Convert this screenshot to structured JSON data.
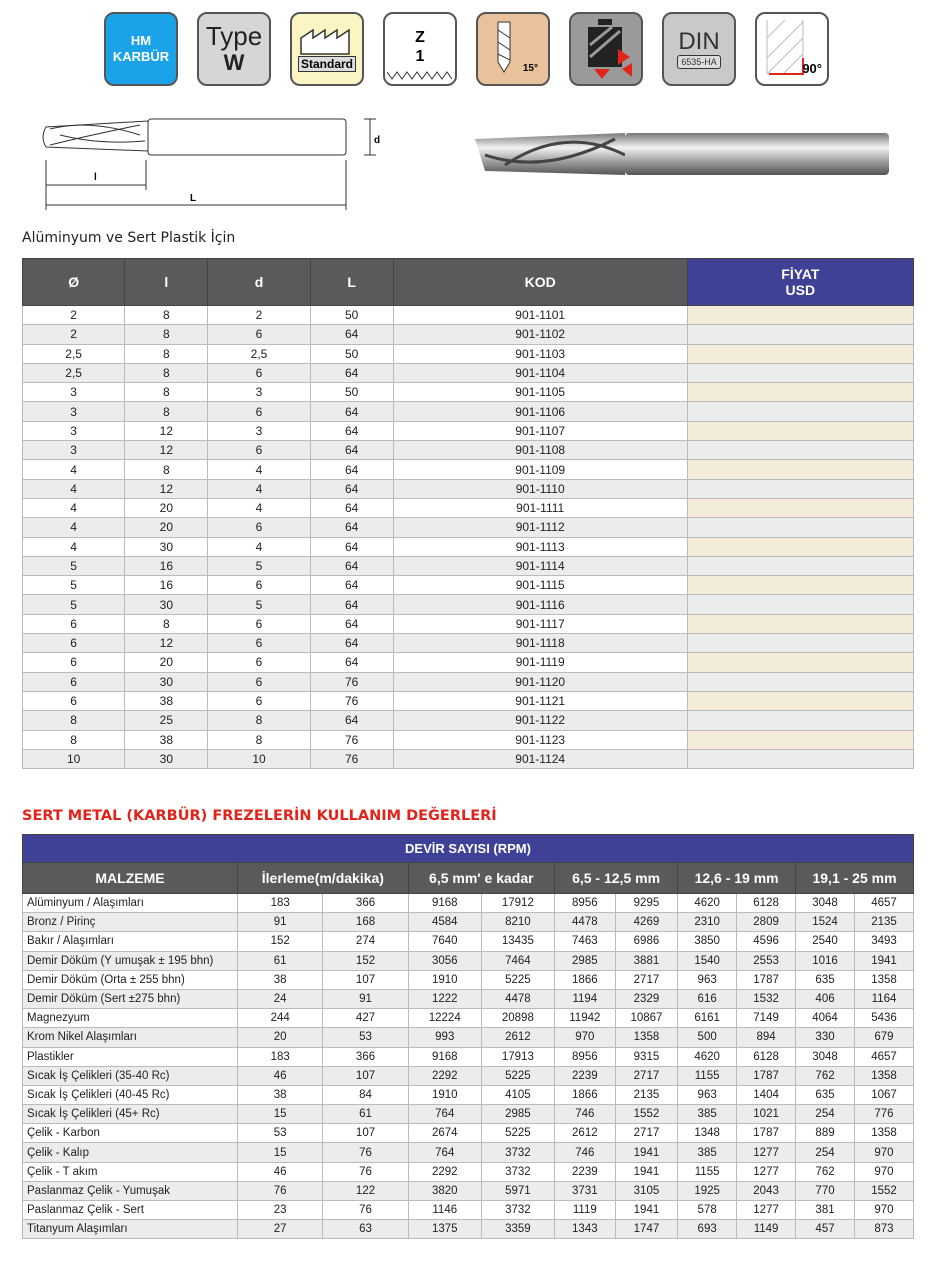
{
  "icons": [
    {
      "name": "hm-karbur-icon",
      "lines": [
        "HM",
        "KARBÜR"
      ]
    },
    {
      "name": "type-w-icon",
      "lines": [
        "Type",
        "W"
      ]
    },
    {
      "name": "standard-factory-icon",
      "lines": [
        "Standard"
      ]
    },
    {
      "name": "flute-z1-icon",
      "lines": [
        "Z",
        "1"
      ]
    },
    {
      "name": "helix-angle-icon",
      "lines": [
        "15°"
      ]
    },
    {
      "name": "cutting-direction-icon",
      "lines": []
    },
    {
      "name": "din-icon",
      "lines": [
        "DIN",
        "6535-HA"
      ]
    },
    {
      "name": "angle-90-icon",
      "lines": [
        "90°"
      ]
    }
  ],
  "drawing": {
    "labels": {
      "d": "d",
      "l": "l",
      "L": "L"
    }
  },
  "table1": {
    "title": "Alüminyum ve Sert Plastik İçin",
    "headers": [
      "Ø",
      "l",
      "d",
      "L",
      "KOD"
    ],
    "price_header": [
      "FİYAT",
      "USD"
    ],
    "rows": [
      [
        "2",
        "8",
        "2",
        "50",
        "901-1101"
      ],
      [
        "2",
        "8",
        "6",
        "64",
        "901-1102"
      ],
      [
        "2,5",
        "8",
        "2,5",
        "50",
        "901-1103"
      ],
      [
        "2,5",
        "8",
        "6",
        "64",
        "901-1104"
      ],
      [
        "3",
        "8",
        "3",
        "50",
        "901-1105"
      ],
      [
        "3",
        "8",
        "6",
        "64",
        "901-1106"
      ],
      [
        "3",
        "12",
        "3",
        "64",
        "901-1107"
      ],
      [
        "3",
        "12",
        "6",
        "64",
        "901-1108"
      ],
      [
        "4",
        "8",
        "4",
        "64",
        "901-1109"
      ],
      [
        "4",
        "12",
        "4",
        "64",
        "901-1110"
      ],
      [
        "4",
        "20",
        "4",
        "64",
        "901-1111"
      ],
      [
        "4",
        "20",
        "6",
        "64",
        "901-1112"
      ],
      [
        "4",
        "30",
        "4",
        "64",
        "901-1113"
      ],
      [
        "5",
        "16",
        "5",
        "64",
        "901-1114"
      ],
      [
        "5",
        "16",
        "6",
        "64",
        "901-1115"
      ],
      [
        "5",
        "30",
        "5",
        "64",
        "901-1116"
      ],
      [
        "6",
        "8",
        "6",
        "64",
        "901-1117"
      ],
      [
        "6",
        "12",
        "6",
        "64",
        "901-1118"
      ],
      [
        "6",
        "20",
        "6",
        "64",
        "901-1119"
      ],
      [
        "6",
        "30",
        "6",
        "76",
        "901-1120"
      ],
      [
        "6",
        "38",
        "6",
        "76",
        "901-1121"
      ],
      [
        "8",
        "25",
        "8",
        "64",
        "901-1122"
      ],
      [
        "8",
        "38",
        "8",
        "76",
        "901-1123"
      ],
      [
        "10",
        "30",
        "10",
        "76",
        "901-1124"
      ]
    ]
  },
  "table2": {
    "title": "SERT METAL (KARBÜR) FREZELERİN KULLANIM DEĞERLERİ",
    "rpm_header": "DEVİR SAYISI (RPM)",
    "headers": [
      "MALZEME",
      "İlerleme(m/dakika)",
      "6,5 mm' e kadar",
      "6,5 - 12,5 mm",
      "12,6 - 19 mm",
      "19,1 - 25 mm"
    ],
    "rows": [
      [
        "Alüminyum / Alaşımları",
        "183",
        "366",
        "9168",
        "17912",
        "8956",
        "9295",
        "4620",
        "6128",
        "3048",
        "4657"
      ],
      [
        "Bronz / Pirinç",
        "91",
        "168",
        "4584",
        "8210",
        "4478",
        "4269",
        "2310",
        "2809",
        "1524",
        "2135"
      ],
      [
        "Bakır / Alaşımları",
        "152",
        "274",
        "7640",
        "13435",
        "7463",
        "6986",
        "3850",
        "4596",
        "2540",
        "3493"
      ],
      [
        "Demir Döküm (Y umuşak ± 195 bhn)",
        "61",
        "152",
        "3056",
        "7464",
        "2985",
        "3881",
        "1540",
        "2553",
        "1016",
        "1941"
      ],
      [
        "Demir Döküm (Orta ± 255 bhn)",
        "38",
        "107",
        "1910",
        "5225",
        "1866",
        "2717",
        "963",
        "1787",
        "635",
        "1358"
      ],
      [
        "Demir Döküm (Sert ±275 bhn)",
        "24",
        "91",
        "1222",
        "4478",
        "1194",
        "2329",
        "616",
        "1532",
        "406",
        "1164"
      ],
      [
        "Magnezyum",
        "244",
        "427",
        "12224",
        "20898",
        "11942",
        "10867",
        "6161",
        "7149",
        "4064",
        "5436"
      ],
      [
        "Krom Nikel Alaşımları",
        "20",
        "53",
        "993",
        "2612",
        "970",
        "1358",
        "500",
        "894",
        "330",
        "679"
      ],
      [
        "Plastikler",
        "183",
        "366",
        "9168",
        "17913",
        "8956",
        "9315",
        "4620",
        "6128",
        "3048",
        "4657"
      ],
      [
        "Sıcak İş Çelikleri (35-40 Rc)",
        "46",
        "107",
        "2292",
        "5225",
        "2239",
        "2717",
        "1155",
        "1787",
        "762",
        "1358"
      ],
      [
        "Sıcak İş Çelikleri (40-45 Rc)",
        "38",
        "84",
        "1910",
        "4105",
        "1866",
        "2135",
        "963",
        "1404",
        "635",
        "1067"
      ],
      [
        "Sıcak İş Çelikleri (45+ Rc)",
        "15",
        "61",
        "764",
        "2985",
        "746",
        "1552",
        "385",
        "1021",
        "254",
        "776"
      ],
      [
        "Çelik - Karbon",
        "53",
        "107",
        "2674",
        "5225",
        "2612",
        "2717",
        "1348",
        "1787",
        "889",
        "1358"
      ],
      [
        "Çelik - Kalıp",
        "15",
        "76",
        "764",
        "3732",
        "746",
        "1941",
        "385",
        "1277",
        "254",
        "970"
      ],
      [
        "Çelik - T akım",
        "46",
        "76",
        "2292",
        "3732",
        "2239",
        "1941",
        "1155",
        "1277",
        "762",
        "970"
      ],
      [
        "Paslanmaz Çelik - Yumuşak",
        "76",
        "122",
        "3820",
        "5971",
        "3731",
        "3105",
        "1925",
        "2043",
        "770",
        "1552"
      ],
      [
        "Paslanmaz Çelik - Sert",
        "23",
        "76",
        "1146",
        "3732",
        "1119",
        "1941",
        "578",
        "1277",
        "381",
        "970"
      ],
      [
        "Titanyum Alaşımları",
        "27",
        "63",
        "1375",
        "3359",
        "1343",
        "1747",
        "693",
        "1149",
        "457",
        "873"
      ]
    ]
  },
  "colors": {
    "header_gray": "#5a5a5c",
    "header_blue": "#3f4196",
    "price_cell": "#f3ecd9",
    "title_red": "#e2231a",
    "hm_blue": "#1aa3e8"
  }
}
